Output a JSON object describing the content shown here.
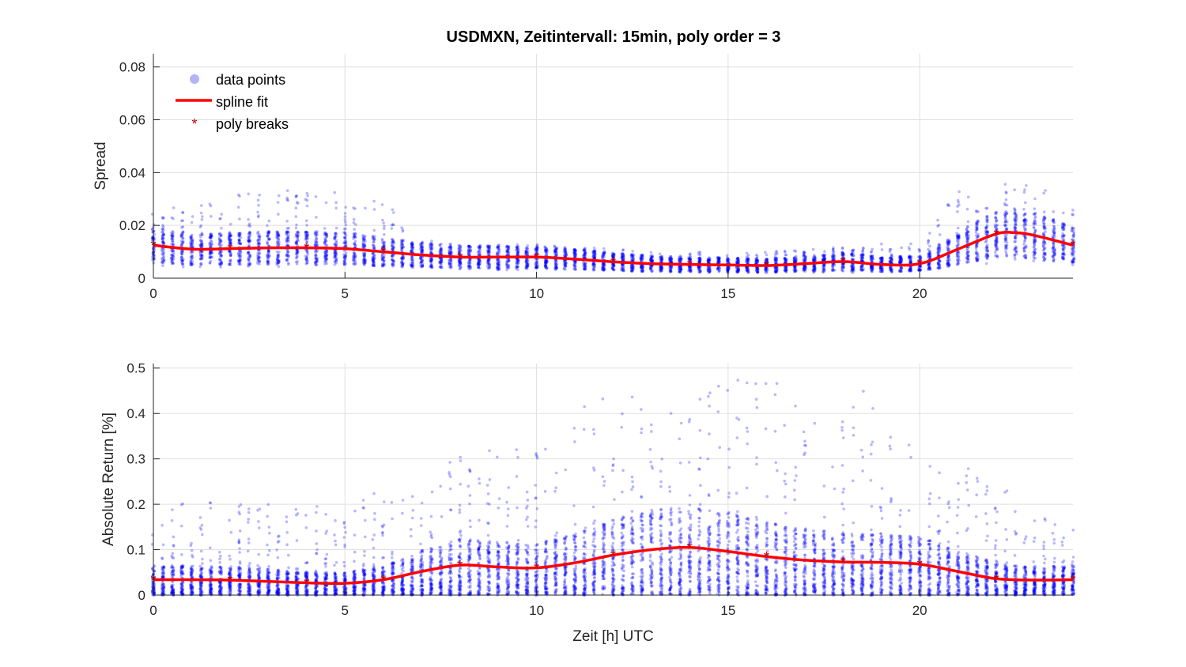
{
  "chart_data": [
    {
      "type": "scatter",
      "title": "USDMXN, Zeitintervall: 15min, poly order = 3",
      "xlabel": "",
      "ylabel": "Spread",
      "xlim": [
        0,
        24
      ],
      "ylim": [
        0,
        0.085
      ],
      "xticks": [
        0,
        5,
        10,
        15,
        20
      ],
      "yticks": [
        0,
        0.02,
        0.04,
        0.06,
        0.08
      ],
      "ytick_labels": [
        "0",
        "0.02",
        "0.04",
        "0.06",
        "0.08"
      ],
      "grid": true,
      "legend": {
        "placement": "top-left",
        "entries": [
          {
            "label": "data points",
            "marker": "dot",
            "color": "#b3b3f5"
          },
          {
            "label": "spline fit",
            "marker": "line",
            "color": "#ff0000"
          },
          {
            "label": "poly breaks",
            "marker": "star",
            "color": "#cc0000"
          }
        ]
      },
      "series": [
        {
          "name": "spline fit",
          "kind": "line",
          "x": [
            0,
            1,
            2,
            3,
            4,
            5,
            6,
            7,
            8,
            9,
            10,
            11,
            12,
            13,
            14,
            15,
            16,
            17,
            18,
            19,
            20,
            21,
            22,
            22.5,
            23,
            24
          ],
          "y": [
            0.0125,
            0.011,
            0.0112,
            0.0115,
            0.0115,
            0.0112,
            0.01,
            0.0088,
            0.008,
            0.008,
            0.008,
            0.0072,
            0.0062,
            0.0055,
            0.0052,
            0.005,
            0.0048,
            0.0055,
            0.0063,
            0.0052,
            0.0055,
            0.011,
            0.0168,
            0.0172,
            0.0162,
            0.0125
          ]
        },
        {
          "name": "poly breaks",
          "kind": "markers",
          "x": [
            0,
            2,
            4,
            6,
            8,
            10,
            12,
            14,
            16,
            18,
            20,
            22,
            24
          ],
          "y": [
            0.0125,
            0.0112,
            0.0115,
            0.01,
            0.008,
            0.008,
            0.0062,
            0.0052,
            0.0048,
            0.0063,
            0.0055,
            0.0168,
            0.0125
          ]
        },
        {
          "name": "data points",
          "kind": "scatter-band",
          "x_step": 0.25,
          "x_range": [
            0,
            24
          ],
          "band_low": [
            0.004,
            0.004,
            0.004,
            0.004,
            0.004,
            0.004,
            0.004,
            0.004,
            0.003,
            0.003,
            0.003,
            0.003,
            0.003,
            0.002,
            0.002,
            0.002,
            0.002,
            0.002,
            0.002,
            0.002,
            0.003,
            0.004,
            0.005,
            0.005,
            0.005
          ],
          "band_high": [
            0.028,
            0.027,
            0.033,
            0.034,
            0.034,
            0.032,
            0.03,
            0.015,
            0.013,
            0.013,
            0.013,
            0.012,
            0.011,
            0.01,
            0.01,
            0.01,
            0.01,
            0.011,
            0.012,
            0.013,
            0.014,
            0.034,
            0.036,
            0.035,
            0.028
          ]
        }
      ]
    },
    {
      "type": "scatter",
      "title": "",
      "xlabel": "Zeit [h] UTC",
      "ylabel": "Absolute Return [%]",
      "xlim": [
        0,
        24
      ],
      "ylim": [
        0,
        0.51
      ],
      "xticks": [
        0,
        5,
        10,
        15,
        20
      ],
      "yticks": [
        0,
        0.1,
        0.2,
        0.3,
        0.4,
        0.5
      ],
      "ytick_labels": [
        "0",
        "0.1",
        "0.2",
        "0.3",
        "0.4",
        "0.5"
      ],
      "grid": true,
      "series": [
        {
          "name": "spline fit",
          "kind": "line",
          "x": [
            0,
            1,
            2,
            3,
            4,
            5,
            6,
            7,
            8,
            9,
            10,
            11,
            12,
            13,
            14,
            15,
            16,
            17,
            18,
            19,
            20,
            21,
            22,
            23,
            24
          ],
          "y": [
            0.034,
            0.034,
            0.033,
            0.03,
            0.027,
            0.026,
            0.034,
            0.052,
            0.066,
            0.062,
            0.06,
            0.071,
            0.088,
            0.1,
            0.105,
            0.096,
            0.085,
            0.077,
            0.073,
            0.072,
            0.068,
            0.052,
            0.036,
            0.033,
            0.034
          ]
        },
        {
          "name": "poly breaks",
          "kind": "markers",
          "x": [
            0,
            2,
            4,
            6,
            8,
            10,
            12,
            14,
            16,
            18,
            20,
            22,
            24
          ],
          "y": [
            0.034,
            0.033,
            0.027,
            0.034,
            0.066,
            0.06,
            0.088,
            0.105,
            0.085,
            0.073,
            0.068,
            0.036,
            0.034
          ]
        },
        {
          "name": "data points",
          "kind": "scatter-band",
          "x_step": 0.25,
          "x_range": [
            0,
            24
          ],
          "band_low": [
            0,
            0,
            0,
            0,
            0,
            0,
            0,
            0,
            0,
            0,
            0,
            0,
            0,
            0,
            0,
            0,
            0,
            0,
            0,
            0,
            0,
            0,
            0,
            0,
            0
          ],
          "band_high": [
            0.16,
            0.22,
            0.2,
            0.2,
            0.19,
            0.22,
            0.23,
            0.26,
            0.33,
            0.33,
            0.32,
            0.4,
            0.48,
            0.41,
            0.42,
            0.5,
            0.49,
            0.42,
            0.44,
            0.46,
            0.35,
            0.3,
            0.24,
            0.2,
            0.17
          ]
        }
      ]
    }
  ]
}
